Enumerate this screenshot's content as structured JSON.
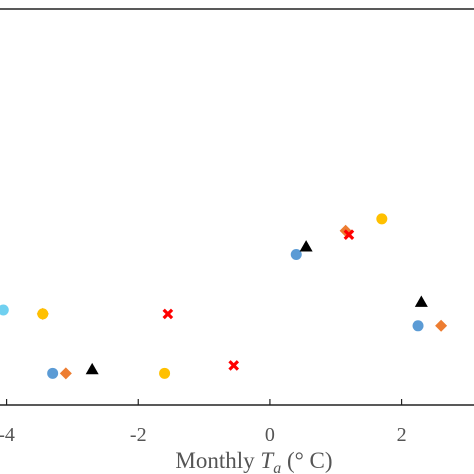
{
  "chart_data": {
    "type": "scatter",
    "xlabel": {
      "prefix": "Monthly ",
      "var": "T",
      "sub": "a",
      "suffix": " (° C)"
    },
    "ylabel": "",
    "title": "",
    "xlim": [
      -4.1,
      3.1
    ],
    "ylim": [
      0,
      1
    ],
    "x_ticks": [
      -4,
      -2,
      0,
      2
    ],
    "x_tick_labels": [
      "-4",
      "-2",
      "0",
      "2"
    ],
    "grid": false,
    "series": [
      {
        "marker": "circle",
        "color": "#5B9BD5",
        "points": [
          {
            "x": -3.3,
            "y": 0.08
          },
          {
            "x": 0.4,
            "y": 0.38
          },
          {
            "x": 2.25,
            "y": 0.2
          }
        ]
      },
      {
        "marker": "diamond",
        "color": "#ED7D31",
        "points": [
          {
            "x": -3.45,
            "y": 0.23
          },
          {
            "x": -3.1,
            "y": 0.08
          },
          {
            "x": 1.15,
            "y": 0.44
          },
          {
            "x": 2.6,
            "y": 0.2
          }
        ]
      },
      {
        "marker": "triangle",
        "color": "#000000",
        "points": [
          {
            "x": -2.7,
            "y": 0.09
          },
          {
            "x": 0.55,
            "y": 0.4
          },
          {
            "x": 2.3,
            "y": 0.26
          }
        ]
      },
      {
        "marker": "cross",
        "color": "#FF0000",
        "points": [
          {
            "x": -1.55,
            "y": 0.23
          },
          {
            "x": -0.55,
            "y": 0.1
          },
          {
            "x": 1.2,
            "y": 0.43
          }
        ]
      },
      {
        "marker": "circle",
        "color": "#FFC000",
        "points": [
          {
            "x": -3.45,
            "y": 0.23
          },
          {
            "x": -1.6,
            "y": 0.08
          },
          {
            "x": 1.7,
            "y": 0.47
          }
        ]
      },
      {
        "marker": "circle",
        "color": "#70D0F0",
        "points": [
          {
            "x": -4.05,
            "y": 0.24
          }
        ]
      }
    ]
  }
}
